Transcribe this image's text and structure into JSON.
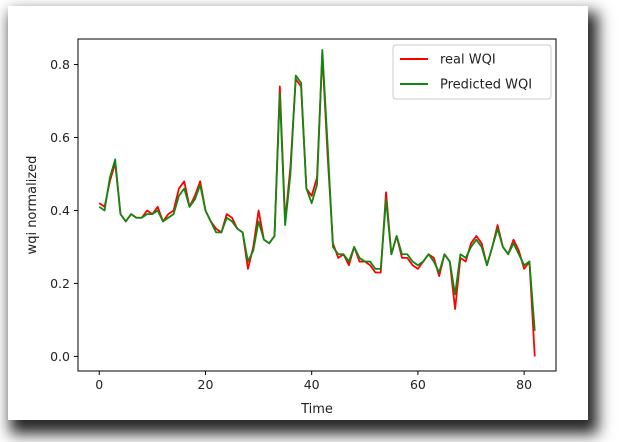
{
  "chart_data": {
    "type": "line",
    "xlabel": "Time",
    "ylabel": "wqi normalized",
    "xlim": [
      -4,
      86
    ],
    "ylim": [
      -0.04,
      0.87
    ],
    "xticks": [
      0,
      20,
      40,
      60,
      80
    ],
    "yticks": [
      0.0,
      0.2,
      0.4,
      0.6,
      0.8
    ],
    "ytick_labels": [
      "0.0",
      "0.2",
      "0.4",
      "0.6",
      "0.8"
    ],
    "grid": false,
    "legend_position": "top-right",
    "x": [
      0,
      1,
      2,
      3,
      4,
      5,
      6,
      7,
      8,
      9,
      10,
      11,
      12,
      13,
      14,
      15,
      16,
      17,
      18,
      19,
      20,
      21,
      22,
      23,
      24,
      25,
      26,
      27,
      28,
      29,
      30,
      31,
      32,
      33,
      34,
      35,
      36,
      37,
      38,
      39,
      40,
      41,
      42,
      43,
      44,
      45,
      46,
      47,
      48,
      49,
      50,
      51,
      52,
      53,
      54,
      55,
      56,
      57,
      58,
      59,
      60,
      61,
      62,
      63,
      64,
      65,
      66,
      67,
      68,
      69,
      70,
      71,
      72,
      73,
      74,
      75,
      76,
      77,
      78,
      79,
      80,
      81,
      82
    ],
    "series": [
      {
        "name": "real WQI",
        "color": "#ff0000",
        "values": [
          0.42,
          0.41,
          0.48,
          0.53,
          0.39,
          0.37,
          0.39,
          0.38,
          0.38,
          0.4,
          0.39,
          0.41,
          0.37,
          0.39,
          0.4,
          0.46,
          0.48,
          0.41,
          0.44,
          0.48,
          0.4,
          0.37,
          0.35,
          0.34,
          0.39,
          0.38,
          0.35,
          0.34,
          0.24,
          0.3,
          0.4,
          0.32,
          0.31,
          0.33,
          0.74,
          0.37,
          0.52,
          0.76,
          0.74,
          0.46,
          0.44,
          0.49,
          0.83,
          0.55,
          0.31,
          0.27,
          0.28,
          0.25,
          0.3,
          0.26,
          0.26,
          0.25,
          0.23,
          0.23,
          0.45,
          0.28,
          0.33,
          0.27,
          0.27,
          0.25,
          0.24,
          0.26,
          0.28,
          0.27,
          0.22,
          0.28,
          0.26,
          0.13,
          0.27,
          0.26,
          0.31,
          0.33,
          0.31,
          0.25,
          0.3,
          0.36,
          0.3,
          0.28,
          0.32,
          0.29,
          0.24,
          0.26,
          0.0
        ]
      },
      {
        "name": "Predicted WQI",
        "color": "#118811",
        "values": [
          0.41,
          0.4,
          0.49,
          0.54,
          0.39,
          0.37,
          0.39,
          0.38,
          0.38,
          0.39,
          0.39,
          0.4,
          0.37,
          0.38,
          0.39,
          0.44,
          0.46,
          0.41,
          0.43,
          0.47,
          0.4,
          0.37,
          0.34,
          0.34,
          0.38,
          0.37,
          0.35,
          0.34,
          0.26,
          0.29,
          0.37,
          0.32,
          0.31,
          0.33,
          0.72,
          0.36,
          0.5,
          0.77,
          0.75,
          0.46,
          0.42,
          0.47,
          0.84,
          0.58,
          0.3,
          0.28,
          0.28,
          0.26,
          0.3,
          0.27,
          0.26,
          0.26,
          0.24,
          0.24,
          0.43,
          0.28,
          0.33,
          0.28,
          0.28,
          0.26,
          0.25,
          0.26,
          0.28,
          0.26,
          0.23,
          0.28,
          0.26,
          0.17,
          0.28,
          0.27,
          0.3,
          0.32,
          0.3,
          0.25,
          0.3,
          0.35,
          0.3,
          0.28,
          0.31,
          0.28,
          0.25,
          0.26,
          0.07
        ]
      }
    ]
  }
}
